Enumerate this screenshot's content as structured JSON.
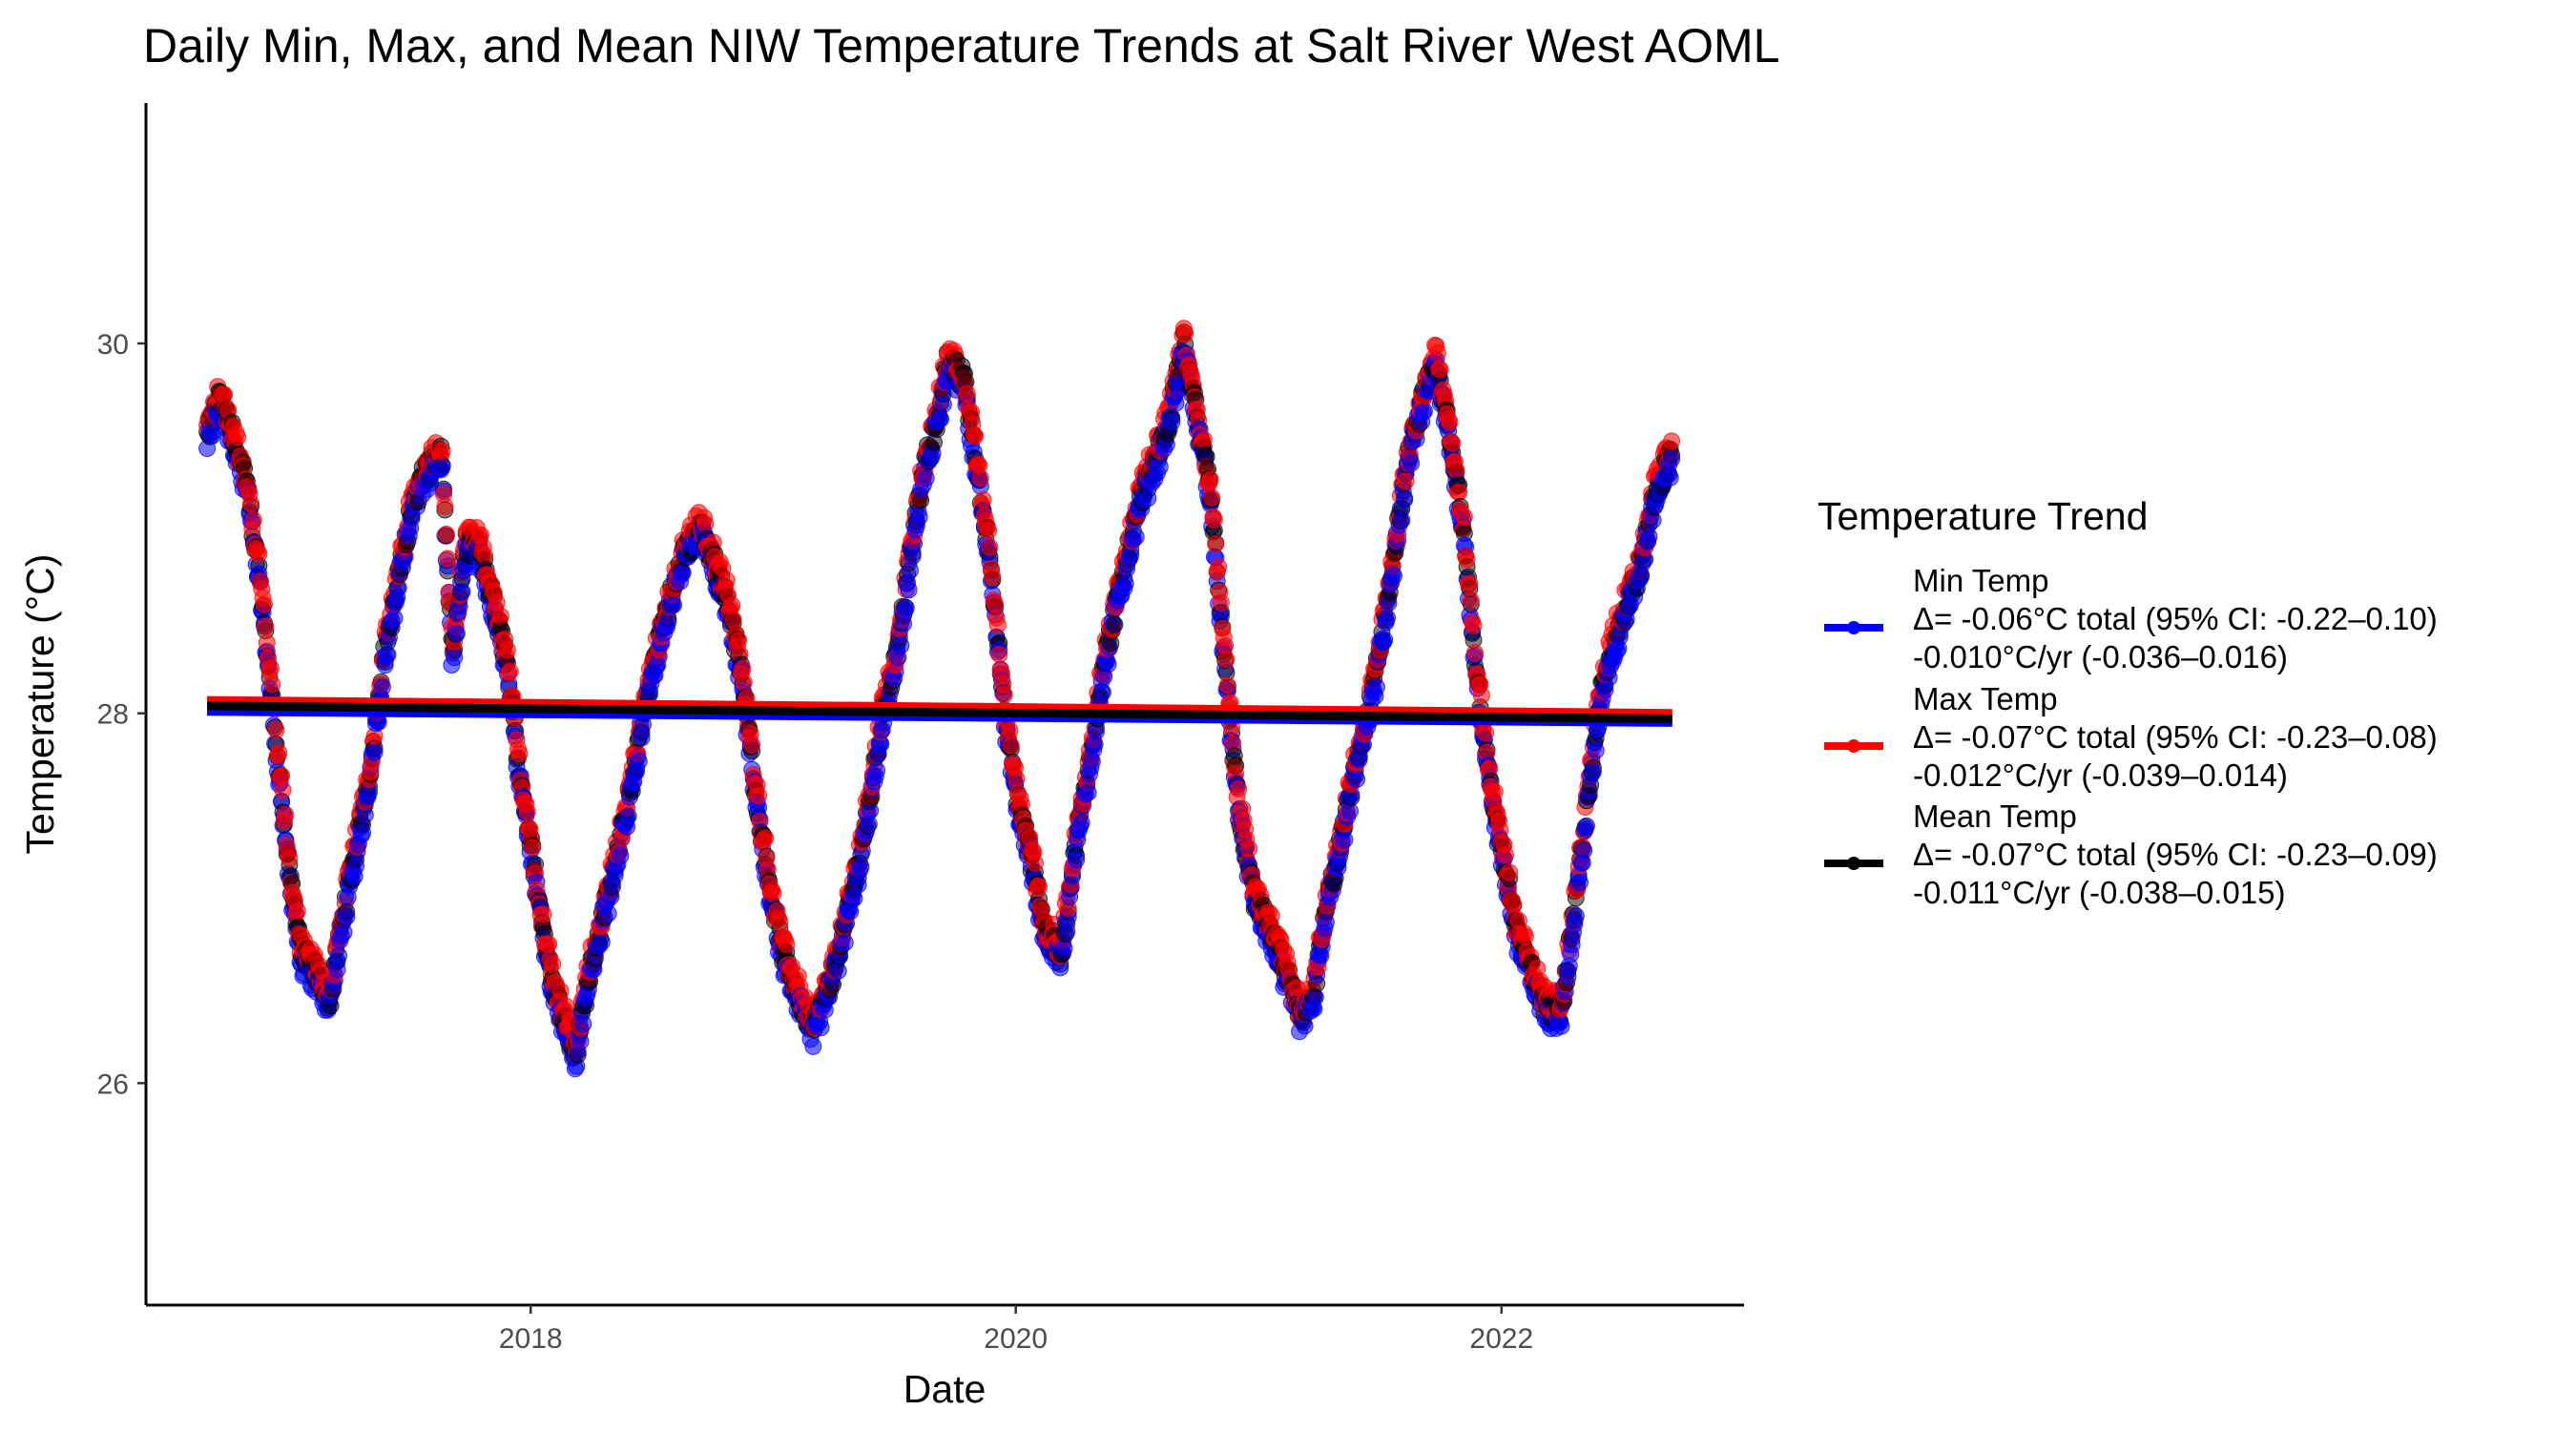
{
  "chart_data": {
    "type": "scatter",
    "title": "Daily Min, Max, and Mean NIW Temperature Trends at Salt River West AOML",
    "xlabel": "Date",
    "ylabel": "Temperature (°C)",
    "x_range": [
      "2016-06-01",
      "2023-01-01"
    ],
    "ylim": [
      24.8,
      31.3
    ],
    "x_ticks": [
      {
        "date": "2018-01-01",
        "label": "2018"
      },
      {
        "date": "2020-01-01",
        "label": "2020"
      },
      {
        "date": "2022-01-01",
        "label": "2022"
      }
    ],
    "y_ticks": [
      26,
      28,
      30
    ],
    "grid": false,
    "data_start": "2016-09-01",
    "data_end": "2022-09-15",
    "legend": {
      "title": "Temperature Trend",
      "placement": "right"
    },
    "series": [
      {
        "name": "Min Temp",
        "color": "#0000ff",
        "label_lines": [
          "Min Temp",
          "Δ= -0.06°C total (95% CI: -0.22–0.10)",
          "-0.010°C/yr (-0.036–0.016)"
        ],
        "trend": {
          "start": [
            "2016-09-01",
            28.01
          ],
          "end": [
            "2022-09-15",
            27.95
          ]
        }
      },
      {
        "name": "Max Temp",
        "color": "#ff0000",
        "label_lines": [
          "Max Temp",
          "Δ= -0.07°C total (95% CI: -0.23–0.08)",
          "-0.012°C/yr (-0.039–0.014)"
        ],
        "trend": {
          "start": [
            "2016-09-01",
            28.07
          ],
          "end": [
            "2022-09-15",
            28.0
          ]
        }
      },
      {
        "name": "Mean Temp",
        "color": "#000000",
        "label_lines": [
          "Mean Temp",
          "Δ= -0.07°C total (95% CI: -0.23–0.09)",
          "-0.011°C/yr (-0.038–0.015)"
        ],
        "trend": {
          "start": [
            "2016-09-01",
            28.04
          ],
          "end": [
            "2022-09-15",
            27.97
          ]
        }
      }
    ],
    "mean_curve_anchors": [
      [
        "2016-09-01",
        29.5
      ],
      [
        "2016-09-20",
        29.7
      ],
      [
        "2016-10-10",
        29.5
      ],
      [
        "2016-11-01",
        29.2
      ],
      [
        "2016-11-20",
        28.7
      ],
      [
        "2016-12-10",
        28.0
      ],
      [
        "2017-01-01",
        27.2
      ],
      [
        "2017-01-20",
        26.7
      ],
      [
        "2017-02-10",
        26.6
      ],
      [
        "2017-03-05",
        26.45
      ],
      [
        "2017-03-25",
        26.9
      ],
      [
        "2017-04-15",
        27.3
      ],
      [
        "2017-05-05",
        27.7
      ],
      [
        "2017-05-25",
        28.3
      ],
      [
        "2017-06-15",
        28.7
      ],
      [
        "2017-07-05",
        29.1
      ],
      [
        "2017-07-25",
        29.3
      ],
      [
        "2017-08-20",
        29.4
      ],
      [
        "2017-09-05",
        28.3
      ],
      [
        "2017-09-25",
        28.9
      ],
      [
        "2017-10-15",
        28.9
      ],
      [
        "2017-11-05",
        28.6
      ],
      [
        "2017-11-25",
        28.3
      ],
      [
        "2017-12-15",
        27.7
      ],
      [
        "2018-01-05",
        27.2
      ],
      [
        "2018-01-25",
        26.7
      ],
      [
        "2018-02-15",
        26.4
      ],
      [
        "2018-03-10",
        26.15
      ],
      [
        "2018-03-30",
        26.6
      ],
      [
        "2018-04-20",
        26.9
      ],
      [
        "2018-05-10",
        27.2
      ],
      [
        "2018-06-01",
        27.6
      ],
      [
        "2018-06-25",
        28.1
      ],
      [
        "2018-07-15",
        28.4
      ],
      [
        "2018-08-05",
        28.7
      ],
      [
        "2018-08-25",
        28.9
      ],
      [
        "2018-09-15",
        29.0
      ],
      [
        "2018-10-05",
        28.8
      ],
      [
        "2018-10-25",
        28.6
      ],
      [
        "2018-11-15",
        28.2
      ],
      [
        "2018-12-05",
        27.6
      ],
      [
        "2018-12-25",
        27.1
      ],
      [
        "2019-01-15",
        26.7
      ],
      [
        "2019-02-05",
        26.5
      ],
      [
        "2019-03-01",
        26.3
      ],
      [
        "2019-03-25",
        26.5
      ],
      [
        "2019-04-15",
        26.8
      ],
      [
        "2019-05-05",
        27.1
      ],
      [
        "2019-05-25",
        27.5
      ],
      [
        "2019-06-15",
        28.0
      ],
      [
        "2019-07-05",
        28.3
      ],
      [
        "2019-07-25",
        28.8
      ],
      [
        "2019-08-15",
        29.3
      ],
      [
        "2019-09-05",
        29.6
      ],
      [
        "2019-09-20",
        29.9
      ],
      [
        "2019-10-15",
        29.8
      ],
      [
        "2019-11-05",
        29.3
      ],
      [
        "2019-11-25",
        28.8
      ],
      [
        "2019-12-15",
        28.0
      ],
      [
        "2020-01-05",
        27.5
      ],
      [
        "2020-01-25",
        27.2
      ],
      [
        "2020-02-15",
        26.8
      ],
      [
        "2020-03-10",
        26.7
      ],
      [
        "2020-04-01",
        27.3
      ],
      [
        "2020-04-20",
        27.7
      ],
      [
        "2020-05-10",
        28.2
      ],
      [
        "2020-06-01",
        28.6
      ],
      [
        "2020-06-20",
        28.9
      ],
      [
        "2020-07-10",
        29.2
      ],
      [
        "2020-08-01",
        29.4
      ],
      [
        "2020-08-20",
        29.6
      ],
      [
        "2020-09-10",
        30.0
      ],
      [
        "2020-09-30",
        29.6
      ],
      [
        "2020-10-20",
        29.2
      ],
      [
        "2020-11-10",
        28.3
      ],
      [
        "2020-12-01",
        27.5
      ],
      [
        "2020-12-25",
        27.0
      ],
      [
        "2021-01-20",
        26.8
      ],
      [
        "2021-02-10",
        26.6
      ],
      [
        "2021-03-05",
        26.35
      ],
      [
        "2021-03-25",
        26.5
      ],
      [
        "2021-04-15",
        27.0
      ],
      [
        "2021-05-05",
        27.3
      ],
      [
        "2021-05-25",
        27.7
      ],
      [
        "2021-06-15",
        28.0
      ],
      [
        "2021-07-05",
        28.4
      ],
      [
        "2021-07-25",
        28.9
      ],
      [
        "2021-08-15",
        29.4
      ],
      [
        "2021-09-05",
        29.7
      ],
      [
        "2021-09-25",
        29.9
      ],
      [
        "2021-10-15",
        29.5
      ],
      [
        "2021-11-05",
        29.0
      ],
      [
        "2021-11-25",
        28.2
      ],
      [
        "2021-12-15",
        27.6
      ],
      [
        "2022-01-05",
        27.2
      ],
      [
        "2022-01-25",
        26.8
      ],
      [
        "2022-02-15",
        26.6
      ],
      [
        "2022-03-10",
        26.4
      ],
      [
        "2022-04-01",
        26.4
      ],
      [
        "2022-04-20",
        26.9
      ],
      [
        "2022-05-10",
        27.5
      ],
      [
        "2022-05-30",
        28.1
      ],
      [
        "2022-06-20",
        28.4
      ],
      [
        "2022-07-10",
        28.6
      ],
      [
        "2022-07-30",
        28.8
      ],
      [
        "2022-08-20",
        29.2
      ],
      [
        "2022-09-15",
        29.4
      ]
    ]
  }
}
